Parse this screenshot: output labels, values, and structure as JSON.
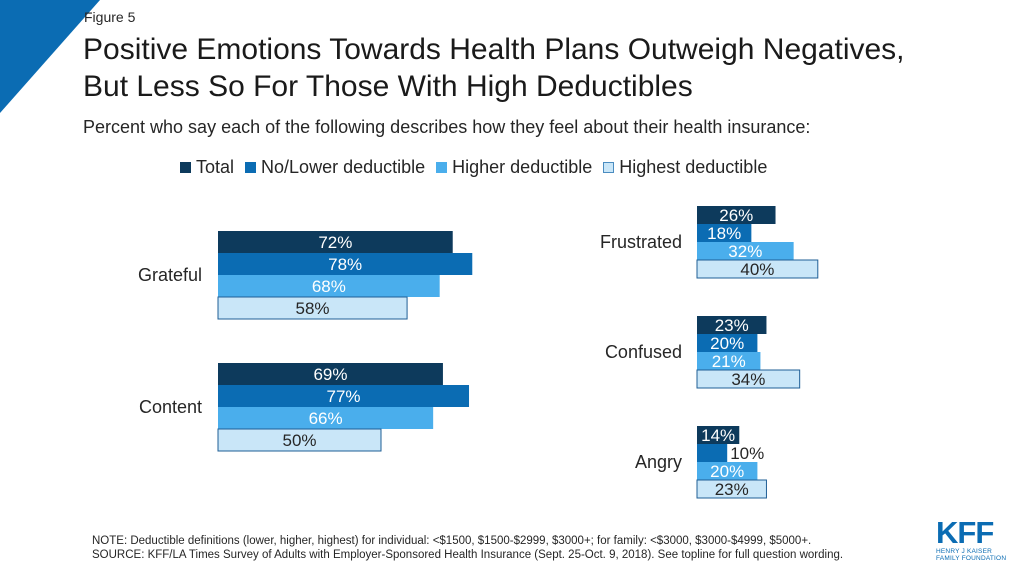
{
  "figure_label": "Figure 5",
  "title_line1": "Positive Emotions Towards Health Plans Outweigh Negatives,",
  "title_line2": "But Less So For Those With High Deductibles",
  "subtitle": "Percent who say each of the following describes how they feel about their health insurance:",
  "colors": {
    "corner": "#0b6cb3",
    "total": "#0d3a5c",
    "no_lower": "#0b6cb3",
    "higher": "#4aaeec",
    "highest": "#c9e6f8"
  },
  "chart_data": {
    "type": "bar",
    "orientation": "horizontal",
    "unit": "%",
    "series": [
      {
        "name": "Total",
        "color_key": "total"
      },
      {
        "name": "No/Lower deductible",
        "color_key": "no_lower"
      },
      {
        "name": "Higher deductible",
        "color_key": "higher"
      },
      {
        "name": "Highest deductible",
        "color_key": "highest"
      }
    ],
    "panels": [
      {
        "categories": [
          {
            "label": "Grateful",
            "values": [
              72,
              78,
              68,
              58
            ]
          },
          {
            "label": "Content",
            "values": [
              69,
              77,
              66,
              50
            ]
          }
        ]
      },
      {
        "categories": [
          {
            "label": "Frustrated",
            "values": [
              26,
              18,
              32,
              40
            ]
          },
          {
            "label": "Confused",
            "values": [
              23,
              20,
              21,
              34
            ]
          },
          {
            "label": "Angry",
            "values": [
              14,
              10,
              20,
              23
            ]
          }
        ]
      }
    ],
    "legend_position": "top"
  },
  "note": "NOTE: Deductible definitions (lower, higher, highest) for individual: <$1500, $1500-$2999, $3000+; for family: <$3000, $3000-$4999, $5000+.",
  "source": "SOURCE: KFF/LA Times Survey of Adults with Employer-Sponsored Health Insurance  (Sept. 25-Oct. 9, 2018). See topline for full question wording.",
  "logo": {
    "mark": "KFF",
    "line1": "HENRY J KAISER",
    "line2": "FAMILY FOUNDATION"
  }
}
